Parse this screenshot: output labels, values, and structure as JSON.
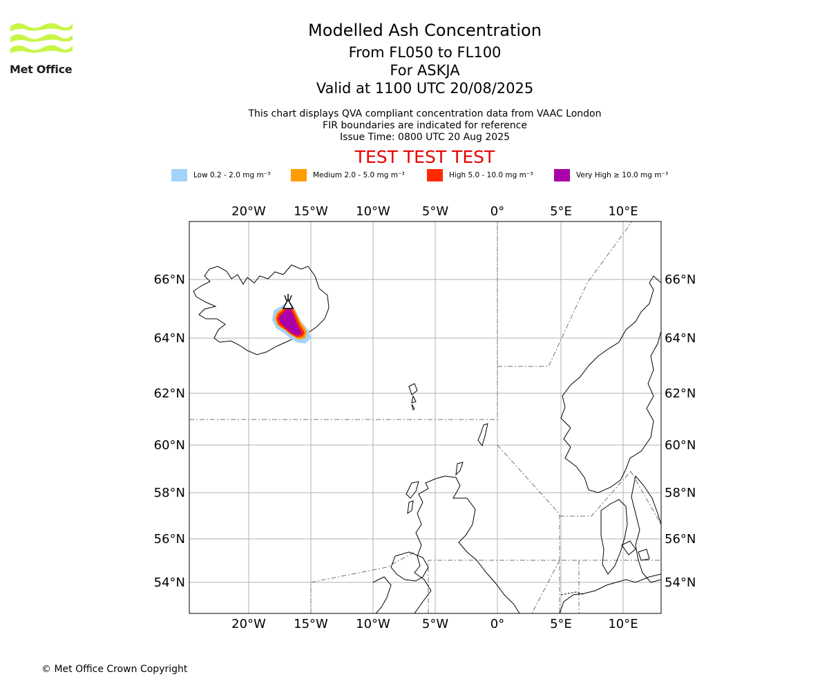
{
  "header": {
    "title": "Modelled Ash Concentration",
    "subtitle_levels": "From FL050 to FL100",
    "subtitle_volcano": "For ASKJA",
    "subtitle_valid": "Valid at 1100 UTC 20/08/2025",
    "note_line1": "This chart displays QVA compliant concentration data from VAAC London",
    "note_line2": "FIR boundaries are indicated for reference",
    "note_line3": "Issue Time: 0800 UTC 20 Aug 2025",
    "test_banner": "TEST TEST TEST"
  },
  "logo": {
    "text": "Met Office",
    "wave_color": "#c8f546"
  },
  "legend": [
    {
      "label": "Low 0.2 - 2.0 mg m⁻³",
      "color": "#a3d3fb"
    },
    {
      "label": "Medium 2.0 - 5.0 mg m⁻³",
      "color": "#ff9c00"
    },
    {
      "label": "High 5.0 - 10.0 mg m⁻³",
      "color": "#ff2a00"
    },
    {
      "label": "Very High ≥ 10.0 mg m⁻³",
      "color": "#aa00aa"
    }
  ],
  "map": {
    "lon_labels": [
      "20°W",
      "15°W",
      "10°W",
      "5°W",
      "0°",
      "5°E",
      "10°E"
    ],
    "lat_labels": [
      "66°N",
      "64°N",
      "62°N",
      "60°N",
      "58°N",
      "56°N",
      "54°N"
    ],
    "volcano": "ASKJA",
    "gridlines": true,
    "fir_boundaries": true
  },
  "footer": {
    "copyright": "© Met Office Crown Copyright"
  }
}
